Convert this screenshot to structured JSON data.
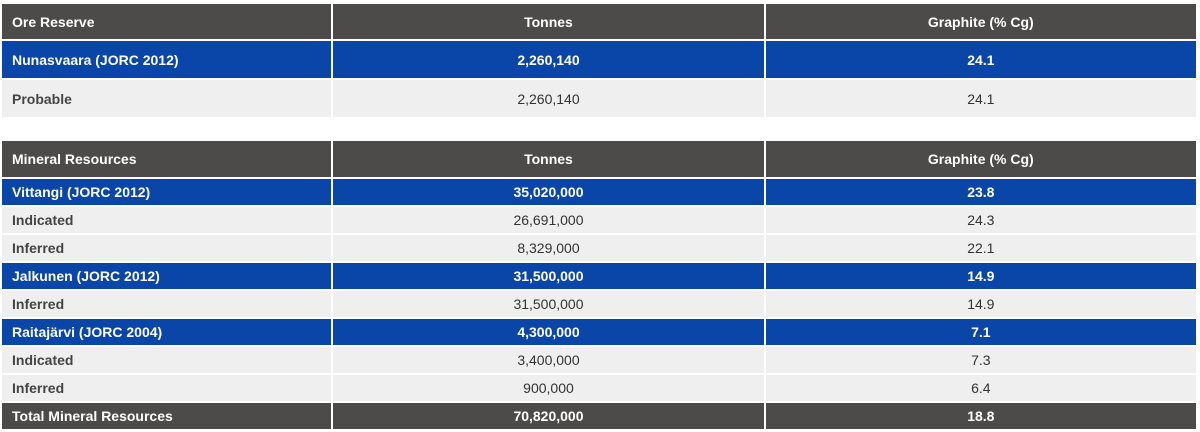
{
  "ore_reserve": {
    "headers": [
      "Ore Reserve",
      "Tonnes",
      "Graphite (% Cg)"
    ],
    "rows": [
      {
        "type": "group",
        "cells": [
          "Nunasvaara (JORC 2012)",
          "2,260,140",
          "24.1"
        ]
      },
      {
        "type": "sub",
        "cells": [
          "Probable",
          "2,260,140",
          "24.1"
        ]
      }
    ]
  },
  "mineral_resources": {
    "headers": [
      "Mineral Resources",
      "Tonnes",
      "Graphite (% Cg)"
    ],
    "rows": [
      {
        "type": "group",
        "cells": [
          "Vittangi (JORC 2012)",
          "35,020,000",
          "23.8"
        ]
      },
      {
        "type": "sub",
        "cells": [
          "Indicated",
          "26,691,000",
          "24.3"
        ]
      },
      {
        "type": "sub",
        "cells": [
          "Inferred",
          "8,329,000",
          "22.1"
        ]
      },
      {
        "type": "group",
        "cells": [
          "Jalkunen (JORC 2012)",
          "31,500,000",
          "14.9"
        ]
      },
      {
        "type": "sub",
        "cells": [
          "Inferred",
          "31,500,000",
          "14.9"
        ]
      },
      {
        "type": "group",
        "cells": [
          "Raitajärvi (JORC 2004)",
          "4,300,000",
          "7.1"
        ]
      },
      {
        "type": "sub",
        "cells": [
          "Indicated",
          "3,400,000",
          "7.3"
        ]
      },
      {
        "type": "sub",
        "cells": [
          "Inferred",
          "900,000",
          "6.4"
        ]
      },
      {
        "type": "total",
        "cells": [
          "Total Mineral Resources",
          "70,820,000",
          "18.8"
        ]
      }
    ]
  },
  "colors": {
    "header_bg": "#4d4b49",
    "group_bg": "#0a45a8",
    "sub_bg": "#f0efef"
  }
}
